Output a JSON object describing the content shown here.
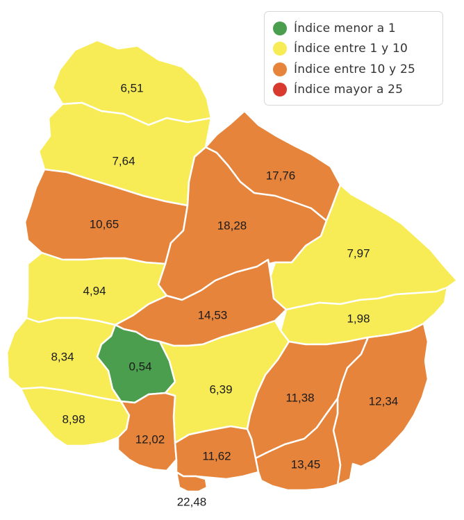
{
  "legend": {
    "items": [
      {
        "label": "Índice menor a 1",
        "color": "#4a9e4e"
      },
      {
        "label": "Índice entre 1 y 10",
        "color": "#f7ec55"
      },
      {
        "label": "Índice entre 10 y 25",
        "color": "#e5843a"
      },
      {
        "label": "Índice mayor a 25",
        "color": "#d93a30"
      }
    ]
  },
  "departments": [
    {
      "value": "6,51",
      "category": 1
    },
    {
      "value": "7,64",
      "category": 1
    },
    {
      "value": "17,76",
      "category": 2
    },
    {
      "value": "10,65",
      "category": 2
    },
    {
      "value": "18,28",
      "category": 2
    },
    {
      "value": "7,97",
      "category": 1
    },
    {
      "value": "4,94",
      "category": 1
    },
    {
      "value": "14,53",
      "category": 2
    },
    {
      "value": "1,98",
      "category": 1
    },
    {
      "value": "8,34",
      "category": 1
    },
    {
      "value": "0,54",
      "category": 0
    },
    {
      "value": "6,39",
      "category": 1
    },
    {
      "value": "11,38",
      "category": 2
    },
    {
      "value": "12,34",
      "category": 2
    },
    {
      "value": "8,98",
      "category": 1
    },
    {
      "value": "12,02",
      "category": 2
    },
    {
      "value": "11,62",
      "category": 2
    },
    {
      "value": "13,45",
      "category": 2
    },
    {
      "value": "22,48",
      "category": 2
    }
  ]
}
